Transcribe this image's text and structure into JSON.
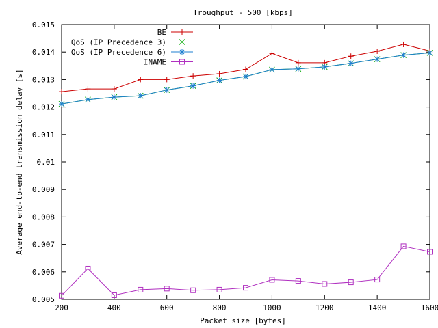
{
  "chart_data": {
    "type": "line",
    "title": "Troughput - 500 [kbps]",
    "xlabel": "Packet size [bytes]",
    "ylabel": "Average end-to-end transmission delay [s]",
    "xlim": [
      200,
      1600
    ],
    "ylim": [
      0.005,
      0.015
    ],
    "x_ticks": [
      "200",
      "400",
      "600",
      "800",
      "1000",
      "1200",
      "1400",
      "1600"
    ],
    "y_ticks": [
      "0.005",
      "0.006",
      "0.007",
      "0.008",
      "0.009",
      "0.01",
      "0.011",
      "0.012",
      "0.013",
      "0.014",
      "0.015"
    ],
    "grid": false,
    "legend_position": "top-right",
    "x": [
      200,
      300,
      400,
      500,
      600,
      700,
      800,
      900,
      1000,
      1100,
      1200,
      1300,
      1400,
      1500,
      1600
    ],
    "series": [
      {
        "name": "BE",
        "color": "#cc0000",
        "marker": "plus",
        "values": [
          0.01256,
          0.01266,
          0.01266,
          0.013,
          0.013,
          0.01313,
          0.01321,
          0.01337,
          0.01395,
          0.01361,
          0.01361,
          0.01385,
          0.01403,
          0.01428,
          0.01404
        ]
      },
      {
        "name": "QoS (IP Precedence 3)",
        "color": "#00aa00",
        "marker": "cross",
        "values": [
          0.01211,
          0.01227,
          0.01236,
          0.01241,
          0.01262,
          0.01277,
          0.01297,
          0.01311,
          0.01336,
          0.01339,
          0.01346,
          0.01359,
          0.01374,
          0.01389,
          0.01397
        ]
      },
      {
        "name": "QoS (IP Precedence 6)",
        "color": "#1e7fd0",
        "marker": "star",
        "values": [
          0.01211,
          0.01227,
          0.01236,
          0.01241,
          0.01262,
          0.01277,
          0.01297,
          0.01311,
          0.01336,
          0.01339,
          0.01346,
          0.01359,
          0.01374,
          0.01389,
          0.01397
        ]
      },
      {
        "name": "INAME",
        "color": "#b030c0",
        "marker": "square",
        "values": [
          0.00513,
          0.00612,
          0.00515,
          0.00535,
          0.00539,
          0.00533,
          0.00535,
          0.00542,
          0.00571,
          0.00567,
          0.00556,
          0.00562,
          0.00572,
          0.00693,
          0.00673
        ]
      }
    ]
  }
}
